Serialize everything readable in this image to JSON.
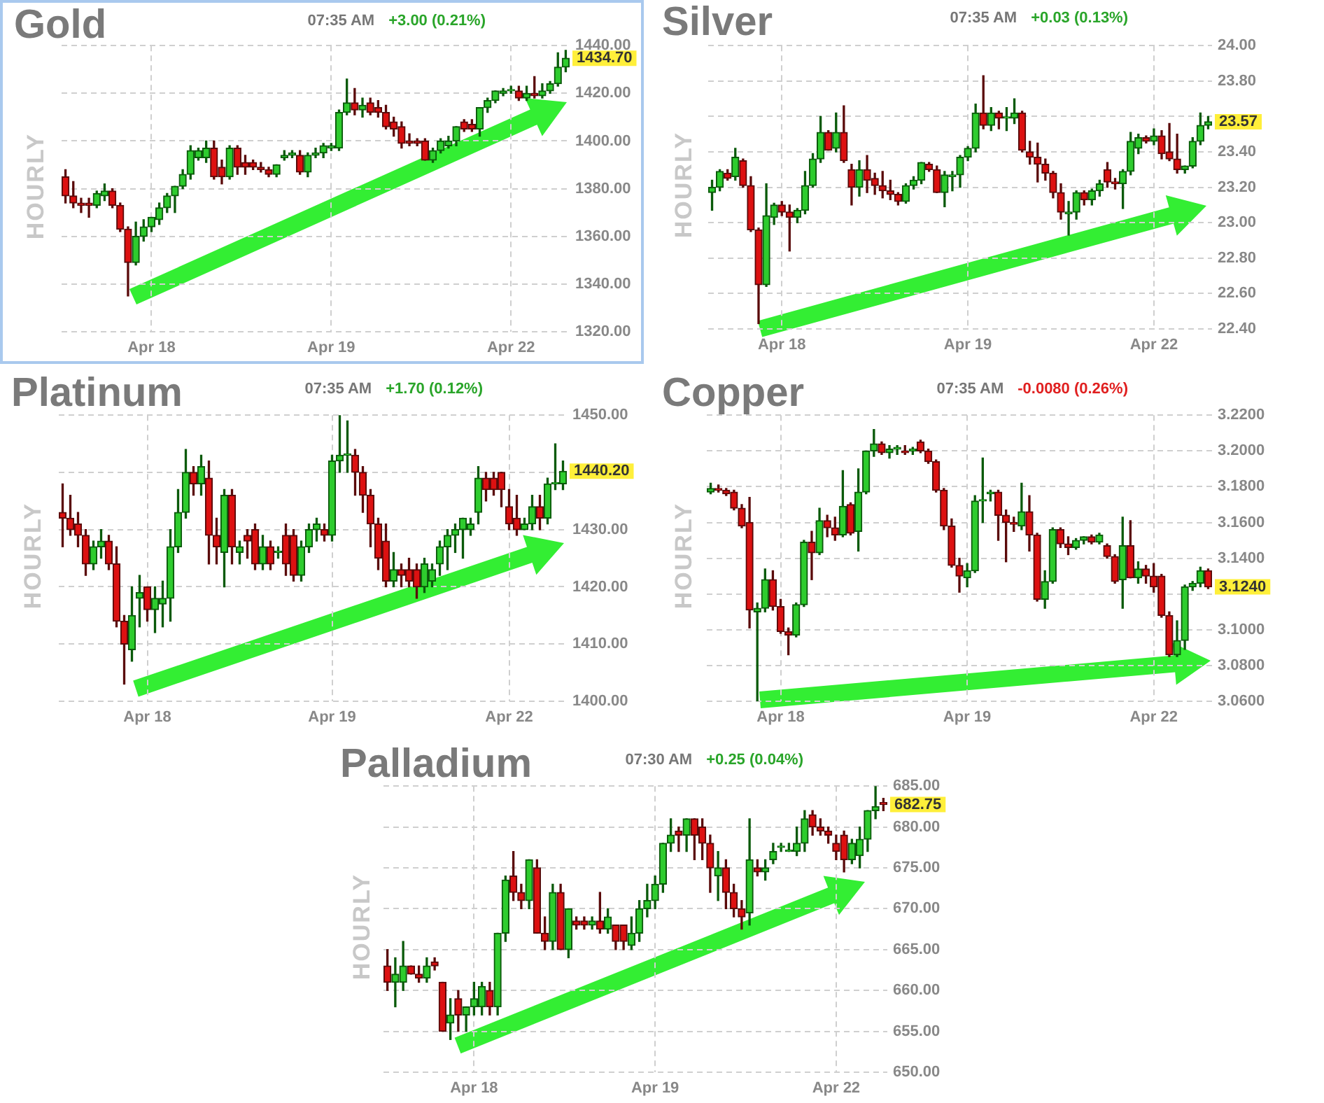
{
  "chart_data": [
    {
      "type": "candlestick",
      "title": "Gold",
      "ylabel": "HOURLY",
      "annotations": [
        "07:35 AM",
        "+3.00 (0.21%)",
        "1434.70"
      ],
      "categories": [
        null,
        null,
        null,
        null,
        null,
        null,
        null,
        null,
        null,
        null,
        null,
        "Apr 18",
        null,
        null,
        null,
        null,
        null,
        null,
        null,
        null,
        null,
        null,
        null,
        null,
        null,
        null,
        null,
        null,
        null,
        null,
        null,
        null,
        null,
        null,
        "Apr 19",
        null,
        null,
        null,
        null,
        null,
        null,
        null,
        null,
        null,
        null,
        null,
        null,
        null,
        null,
        null,
        null,
        null,
        null,
        null,
        null,
        null,
        null,
        "Apr 22",
        null,
        null,
        null,
        null,
        null,
        null,
        null
      ],
      "ohlc": [
        [
          1385,
          1388,
          1374,
          1377
        ],
        [
          1377,
          1383,
          1372,
          1374
        ],
        [
          1374,
          1376,
          1370,
          1373
        ],
        [
          1374,
          1376,
          1368,
          1373
        ],
        [
          1373,
          1379,
          1372,
          1378
        ],
        [
          1377,
          1382,
          1375,
          1379
        ],
        [
          1379,
          1380,
          1372,
          1373
        ],
        [
          1373,
          1374,
          1362,
          1363
        ],
        [
          1363,
          1364,
          1335,
          1349
        ],
        [
          1349,
          1366,
          1348,
          1360
        ],
        [
          1360,
          1367,
          1358,
          1364
        ],
        [
          1364,
          1368,
          1362,
          1368
        ],
        [
          1367,
          1374,
          1365,
          1372
        ],
        [
          1372,
          1378,
          1370,
          1377
        ],
        [
          1377,
          1381,
          1370,
          1381
        ],
        [
          1381,
          1388,
          1380,
          1386
        ],
        [
          1386,
          1398,
          1384,
          1396
        ],
        [
          1393,
          1397,
          1392,
          1396
        ],
        [
          1393,
          1400,
          1391,
          1397
        ],
        [
          1397,
          1400,
          1384,
          1385
        ],
        [
          1389,
          1392,
          1382,
          1385
        ],
        [
          1385,
          1398,
          1384,
          1397
        ],
        [
          1397,
          1398,
          1386,
          1389
        ],
        [
          1391,
          1394,
          1386,
          1389
        ],
        [
          1391,
          1392,
          1388,
          1389
        ],
        [
          1389,
          1391,
          1387,
          1388
        ],
        [
          1388,
          1389,
          1385,
          1386
        ],
        [
          1386,
          1390,
          1385,
          1390
        ],
        [
          1393,
          1396,
          1392,
          1394
        ],
        [
          1394,
          1396,
          1393,
          1395
        ],
        [
          1394,
          1396,
          1386,
          1387
        ],
        [
          1387,
          1395,
          1385,
          1394
        ],
        [
          1394,
          1397,
          1393,
          1395
        ],
        [
          1395,
          1399,
          1393,
          1398
        ],
        [
          1397,
          1399,
          1396,
          1398
        ],
        [
          1397,
          1413,
          1396,
          1412
        ],
        [
          1412,
          1426,
          1411,
          1416
        ],
        [
          1416,
          1422,
          1411,
          1413
        ],
        [
          1413,
          1418,
          1410,
          1415
        ],
        [
          1416,
          1418,
          1411,
          1412
        ],
        [
          1414,
          1417,
          1410,
          1412
        ],
        [
          1412,
          1415,
          1405,
          1406
        ],
        [
          1408,
          1410,
          1402,
          1405
        ],
        [
          1406,
          1408,
          1397,
          1399
        ],
        [
          1400,
          1403,
          1398,
          1399
        ],
        [
          1400,
          1401,
          1398,
          1399
        ],
        [
          1400,
          1401,
          1392,
          1392
        ],
        [
          1392,
          1397,
          1391,
          1396
        ],
        [
          1396,
          1401,
          1395,
          1400
        ],
        [
          1398,
          1402,
          1397,
          1400
        ],
        [
          1400,
          1406,
          1398,
          1406
        ],
        [
          1408,
          1409,
          1404,
          1405
        ],
        [
          1407,
          1409,
          1404,
          1405
        ],
        [
          1405,
          1414,
          1402,
          1414
        ],
        [
          1414,
          1418,
          1412,
          1417
        ],
        [
          1417,
          1421,
          1416,
          1421
        ],
        [
          1420,
          1422,
          1419,
          1421
        ],
        [
          1421,
          1423,
          1420,
          1421.5
        ],
        [
          1421,
          1423,
          1417,
          1418
        ],
        [
          1418,
          1423,
          1417,
          1420
        ],
        [
          1420,
          1427,
          1418,
          1419
        ],
        [
          1419,
          1424,
          1418,
          1421
        ],
        [
          1421,
          1425,
          1420,
          1424
        ],
        [
          1424,
          1437,
          1423,
          1431
        ],
        [
          1431,
          1438,
          1429,
          1434.7
        ]
      ],
      "ylim": [
        1320,
        1440
      ],
      "yticks": [
        {
          "value": 1440,
          "label": "1440.00"
        },
        {
          "value": 1420,
          "label": "1420.00"
        },
        {
          "value": 1400,
          "label": "1400.00"
        },
        {
          "value": 1380,
          "label": "1380.00"
        },
        {
          "value": 1360,
          "label": "1360.00"
        },
        {
          "value": 1340,
          "label": "1340.00"
        },
        {
          "value": 1320,
          "label": "1320.00"
        }
      ],
      "grid": true,
      "legend": false
    },
    {
      "type": "candlestick",
      "title": "Silver",
      "ylabel": "HOURLY",
      "annotations": [
        "07:35 AM",
        "+0.03 (0.13%)",
        "23.57"
      ],
      "categories": [
        null,
        null,
        null,
        null,
        null,
        null,
        null,
        null,
        null,
        "Apr 18",
        null,
        null,
        null,
        null,
        null,
        null,
        null,
        null,
        null,
        null,
        null,
        null,
        null,
        null,
        null,
        null,
        null,
        null,
        null,
        null,
        null,
        null,
        null,
        "Apr 19",
        null,
        null,
        null,
        null,
        null,
        null,
        null,
        null,
        null,
        null,
        null,
        null,
        null,
        null,
        null,
        null,
        null,
        null,
        null,
        null,
        null,
        null,
        null,
        "Apr 22",
        null,
        null,
        null,
        null,
        null,
        null,
        null
      ],
      "ohlc": [
        [
          23.17,
          23.24,
          23.07,
          23.2
        ],
        [
          23.2,
          23.3,
          23.18,
          23.29
        ],
        [
          23.28,
          23.3,
          23.24,
          23.25
        ],
        [
          23.26,
          23.42,
          23.24,
          23.37
        ],
        [
          23.35,
          23.36,
          23.2,
          23.21
        ],
        [
          23.21,
          23.26,
          22.95,
          22.96
        ],
        [
          22.96,
          22.97,
          22.43,
          22.65
        ],
        [
          22.65,
          23.22,
          22.64,
          23.04
        ],
        [
          23.03,
          23.11,
          22.99,
          23.1
        ],
        [
          23.1,
          23.12,
          23.04,
          23.06
        ],
        [
          23.06,
          23.1,
          22.84,
          23.03
        ],
        [
          23.03,
          23.08,
          23,
          23.07
        ],
        [
          23.07,
          23.29,
          23.05,
          23.21
        ],
        [
          23.21,
          23.39,
          23.2,
          23.36
        ],
        [
          23.36,
          23.6,
          23.34,
          23.51
        ],
        [
          23.51,
          23.52,
          23.41,
          23.41
        ],
        [
          23.42,
          23.62,
          23.4,
          23.51
        ],
        [
          23.51,
          23.66,
          23.34,
          23.35
        ],
        [
          23.3,
          23.33,
          23.1,
          23.2
        ],
        [
          23.2,
          23.35,
          23.15,
          23.3
        ],
        [
          23.3,
          23.38,
          23.17,
          23.24
        ],
        [
          23.25,
          23.28,
          23.16,
          23.21
        ],
        [
          23.21,
          23.29,
          23.14,
          23.18
        ],
        [
          23.18,
          23.24,
          23.13,
          23.16
        ],
        [
          23.16,
          23.17,
          23.1,
          23.12
        ],
        [
          23.12,
          23.22,
          23.11,
          23.21
        ],
        [
          23.21,
          23.26,
          23.19,
          23.24
        ],
        [
          23.24,
          23.34,
          23.22,
          23.34
        ],
        [
          23.33,
          23.34,
          23.29,
          23.3
        ],
        [
          23.3,
          23.32,
          23.17,
          23.17
        ],
        [
          23.17,
          23.29,
          23.09,
          23.27
        ],
        [
          23.26,
          23.29,
          23.18,
          23.27
        ],
        [
          23.27,
          23.38,
          23.2,
          23.37
        ],
        [
          23.37,
          23.43,
          23.35,
          23.42
        ],
        [
          23.42,
          23.67,
          23.4,
          23.62
        ],
        [
          23.62,
          23.83,
          23.53,
          23.55
        ],
        [
          23.55,
          23.65,
          23.52,
          23.62
        ],
        [
          23.62,
          23.63,
          23.53,
          23.59
        ],
        [
          23.59,
          23.65,
          23.52,
          23.59
        ],
        [
          23.59,
          23.7,
          23.56,
          23.62
        ],
        [
          23.62,
          23.63,
          23.4,
          23.41
        ],
        [
          23.4,
          23.46,
          23.33,
          23.37
        ],
        [
          23.37,
          23.45,
          23.23,
          23.33
        ],
        [
          23.33,
          23.36,
          23.24,
          23.28
        ],
        [
          23.28,
          23.29,
          23.14,
          23.17
        ],
        [
          23.17,
          23.22,
          23.02,
          23.06
        ],
        [
          23.05,
          23.12,
          22.93,
          23.06
        ],
        [
          23.06,
          23.18,
          23.02,
          23.17
        ],
        [
          23.17,
          23.18,
          23.1,
          23.13
        ],
        [
          23.13,
          23.19,
          23.1,
          23.18
        ],
        [
          23.18,
          23.24,
          23.15,
          23.22
        ],
        [
          23.3,
          23.34,
          23.2,
          23.23
        ],
        [
          23.23,
          23.25,
          23.19,
          23.22
        ],
        [
          23.22,
          23.3,
          23.08,
          23.29
        ],
        [
          23.29,
          23.51,
          23.27,
          23.46
        ],
        [
          23.42,
          23.5,
          23.39,
          23.48
        ],
        [
          23.48,
          23.49,
          23.45,
          23.46
        ],
        [
          23.46,
          23.53,
          23.44,
          23.49
        ],
        [
          23.49,
          23.52,
          23.36,
          23.39
        ],
        [
          23.4,
          23.56,
          23.35,
          23.36
        ],
        [
          23.36,
          23.5,
          23.28,
          23.3
        ],
        [
          23.3,
          23.32,
          23.28,
          23.32
        ],
        [
          23.32,
          23.48,
          23.31,
          23.46
        ],
        [
          23.46,
          23.62,
          23.44,
          23.55
        ],
        [
          23.55,
          23.6,
          23.53,
          23.57
        ]
      ],
      "ylim": [
        22.4,
        24
      ],
      "yticks": [
        {
          "value": 24,
          "label": "24.00"
        },
        {
          "value": 23.8,
          "label": "23.80"
        },
        {
          "value": 23.6,
          "label": null
        },
        {
          "value": 23.4,
          "label": "23.40"
        },
        {
          "value": 23.2,
          "label": "23.20"
        },
        {
          "value": 23,
          "label": "23.00"
        },
        {
          "value": 22.8,
          "label": "22.80"
        },
        {
          "value": 22.6,
          "label": "22.60"
        },
        {
          "value": 22.4,
          "label": "22.40"
        }
      ],
      "grid": true,
      "legend": false
    },
    {
      "type": "candlestick",
      "title": "Platinum",
      "ylabel": "HOURLY",
      "annotations": [
        "07:35 AM",
        "+1.70 (0.12%)",
        "1440.20"
      ],
      "categories": [
        null,
        null,
        null,
        null,
        null,
        null,
        null,
        null,
        null,
        null,
        null,
        "Apr 18",
        null,
        null,
        null,
        null,
        null,
        null,
        null,
        null,
        null,
        null,
        null,
        null,
        null,
        null,
        null,
        null,
        null,
        null,
        null,
        null,
        null,
        null,
        null,
        "Apr 19",
        null,
        null,
        null,
        null,
        null,
        null,
        null,
        null,
        null,
        null,
        null,
        null,
        null,
        null,
        null,
        null,
        null,
        null,
        null,
        null,
        null,
        null,
        "Apr 22",
        null,
        null,
        null,
        null,
        null,
        null,
        null
      ],
      "ohlc": [
        [
          1433,
          1438,
          1427,
          1432
        ],
        [
          1432,
          1436,
          1429,
          1430
        ],
        [
          1431,
          1433,
          1427,
          1429
        ],
        [
          1429,
          1430,
          1422,
          1424
        ],
        [
          1424,
          1428,
          1423,
          1427
        ],
        [
          1427,
          1430,
          1425,
          1428
        ],
        [
          1428,
          1429,
          1423,
          1424
        ],
        [
          1424,
          1427,
          1413,
          1414
        ],
        [
          1414,
          1415,
          1403,
          1410
        ],
        [
          1409,
          1420,
          1407,
          1415
        ],
        [
          1418,
          1422,
          1413,
          1419
        ],
        [
          1420,
          1420,
          1414,
          1416
        ],
        [
          1416,
          1420,
          1412,
          1418
        ],
        [
          1417,
          1421,
          1413,
          1418
        ],
        [
          1418,
          1430,
          1414,
          1427
        ],
        [
          1427,
          1437,
          1426,
          1433
        ],
        [
          1433,
          1444,
          1432,
          1440
        ],
        [
          1440,
          1441,
          1436,
          1438
        ],
        [
          1438,
          1443,
          1436,
          1441
        ],
        [
          1439,
          1442,
          1424,
          1429
        ],
        [
          1429,
          1432,
          1424,
          1427
        ],
        [
          1426,
          1437,
          1420,
          1436
        ],
        [
          1436,
          1437,
          1424,
          1427
        ],
        [
          1426,
          1428,
          1424,
          1427
        ],
        [
          1429,
          1430,
          1425,
          1428
        ],
        [
          1430,
          1431,
          1423,
          1424
        ],
        [
          1424,
          1429,
          1423,
          1427
        ],
        [
          1427,
          1428,
          1423,
          1424
        ],
        [
          1426,
          1427,
          1425,
          1426
        ],
        [
          1429,
          1431,
          1422,
          1424
        ],
        [
          1429,
          1430,
          1421,
          1422
        ],
        [
          1422,
          1428,
          1421,
          1427
        ],
        [
          1427,
          1431,
          1426,
          1430
        ],
        [
          1430,
          1432,
          1428,
          1431
        ],
        [
          1430,
          1431,
          1428,
          1429
        ],
        [
          1429,
          1443,
          1428,
          1442
        ],
        [
          1442,
          1450,
          1440,
          1443
        ],
        [
          1443,
          1449,
          1440,
          1443
        ],
        [
          1443,
          1444,
          1436,
          1440
        ],
        [
          1440,
          1441,
          1433,
          1436
        ],
        [
          1436,
          1437,
          1427,
          1431
        ],
        [
          1431,
          1432,
          1423,
          1425
        ],
        [
          1428,
          1431,
          1420,
          1421
        ],
        [
          1421,
          1426,
          1420,
          1423
        ],
        [
          1423,
          1424,
          1420,
          1422
        ],
        [
          1423,
          1425,
          1420,
          1421
        ],
        [
          1423,
          1424,
          1418,
          1420
        ],
        [
          1420,
          1425,
          1419,
          1424
        ],
        [
          1421,
          1424,
          1420,
          1423
        ],
        [
          1424,
          1428,
          1422,
          1427
        ],
        [
          1427,
          1430,
          1423,
          1429
        ],
        [
          1429,
          1431,
          1426,
          1430
        ],
        [
          1430,
          1432,
          1425,
          1432
        ],
        [
          1430,
          1432,
          1429,
          1431
        ],
        [
          1433,
          1441,
          1431,
          1439
        ],
        [
          1439,
          1440,
          1435,
          1437
        ],
        [
          1439,
          1440,
          1436,
          1437
        ],
        [
          1440,
          1440,
          1434,
          1437
        ],
        [
          1434,
          1437,
          1430,
          1431
        ],
        [
          1432,
          1436,
          1429,
          1430
        ],
        [
          1430,
          1432,
          1430,
          1431
        ],
        [
          1431,
          1436,
          1430,
          1434
        ],
        [
          1434,
          1436,
          1430,
          1432
        ],
        [
          1432,
          1439,
          1431,
          1438
        ],
        [
          1438,
          1445,
          1437,
          1438
        ],
        [
          1438,
          1442,
          1437,
          1440.2
        ]
      ],
      "ylim": [
        1400,
        1450
      ],
      "yticks": [
        {
          "value": 1450,
          "label": "1450.00"
        },
        {
          "value": 1440,
          "label": null
        },
        {
          "value": 1430,
          "label": "1430.00"
        },
        {
          "value": 1420,
          "label": "1420.00"
        },
        {
          "value": 1410,
          "label": "1410.00"
        },
        {
          "value": 1400,
          "label": "1400.00"
        }
      ],
      "grid": true,
      "legend": false
    },
    {
      "type": "candlestick",
      "title": "Copper",
      "ylabel": "HOURLY",
      "annotations": [
        "07:35 AM",
        "-0.0080 (0.26%)",
        "3.1240"
      ],
      "categories": [
        null,
        null,
        null,
        null,
        null,
        null,
        null,
        null,
        null,
        "Apr 18",
        null,
        null,
        null,
        null,
        null,
        null,
        null,
        null,
        null,
        null,
        null,
        null,
        null,
        null,
        null,
        null,
        null,
        null,
        null,
        null,
        null,
        null,
        null,
        "Apr 19",
        null,
        null,
        null,
        null,
        null,
        null,
        null,
        null,
        null,
        null,
        null,
        null,
        null,
        null,
        null,
        null,
        null,
        null,
        null,
        null,
        null,
        null,
        null,
        "Apr 22",
        null,
        null,
        null,
        null,
        null,
        null,
        null
      ],
      "ohlc": [
        [
          3.177,
          3.182,
          3.176,
          3.179
        ],
        [
          3.179,
          3.181,
          3.177,
          3.178
        ],
        [
          3.178,
          3.179,
          3.175,
          3.176
        ],
        [
          3.177,
          3.178,
          3.167,
          3.168
        ],
        [
          3.168,
          3.17,
          3.157,
          3.158
        ],
        [
          3.16,
          3.174,
          3.101,
          3.111
        ],
        [
          3.11,
          3.115,
          3.06,
          3.112
        ],
        [
          3.112,
          3.134,
          3.11,
          3.128
        ],
        [
          3.128,
          3.133,
          3.111,
          3.113
        ],
        [
          3.113,
          3.117,
          3.098,
          3.099
        ],
        [
          3.099,
          3.101,
          3.086,
          3.097
        ],
        [
          3.097,
          3.115,
          3.096,
          3.114
        ],
        [
          3.114,
          3.15,
          3.113,
          3.149
        ],
        [
          3.149,
          3.155,
          3.128,
          3.143
        ],
        [
          3.143,
          3.168,
          3.142,
          3.161
        ],
        [
          3.161,
          3.164,
          3.152,
          3.157
        ],
        [
          3.157,
          3.163,
          3.15,
          3.153
        ],
        [
          3.153,
          3.189,
          3.152,
          3.169
        ],
        [
          3.17,
          3.171,
          3.153,
          3.154
        ],
        [
          3.155,
          3.19,
          3.144,
          3.177
        ],
        [
          3.177,
          3.2,
          3.176,
          3.2
        ],
        [
          3.2,
          3.212,
          3.197,
          3.204
        ],
        [
          3.204,
          3.205,
          3.198,
          3.199
        ],
        [
          3.199,
          3.203,
          3.196,
          3.201
        ],
        [
          3.201,
          3.203,
          3.198,
          3.202
        ],
        [
          3.2,
          3.203,
          3.198,
          3.199
        ],
        [
          3.2,
          3.202,
          3.198,
          3.201
        ],
        [
          3.205,
          3.206,
          3.199,
          3.2
        ],
        [
          3.2,
          3.201,
          3.193,
          3.194
        ],
        [
          3.194,
          3.195,
          3.177,
          3.178
        ],
        [
          3.178,
          3.179,
          3.156,
          3.158
        ],
        [
          3.158,
          3.162,
          3.135,
          3.136
        ],
        [
          3.136,
          3.14,
          3.121,
          3.13
        ],
        [
          3.129,
          3.137,
          3.124,
          3.133
        ],
        [
          3.133,
          3.175,
          3.132,
          3.172
        ],
        [
          3.172,
          3.196,
          3.16,
          3.172
        ],
        [
          3.176,
          3.178,
          3.172,
          3.177
        ],
        [
          3.177,
          3.178,
          3.15,
          3.164
        ],
        [
          3.164,
          3.167,
          3.138,
          3.16
        ],
        [
          3.16,
          3.163,
          3.155,
          3.159
        ],
        [
          3.158,
          3.182,
          3.156,
          3.166
        ],
        [
          3.166,
          3.175,
          3.144,
          3.153
        ],
        [
          3.153,
          3.154,
          3.116,
          3.117
        ],
        [
          3.117,
          3.133,
          3.112,
          3.127
        ],
        [
          3.127,
          3.157,
          3.126,
          3.156
        ],
        [
          3.156,
          3.157,
          3.146,
          3.148
        ],
        [
          3.148,
          3.152,
          3.142,
          3.146
        ],
        [
          3.146,
          3.151,
          3.145,
          3.15
        ],
        [
          3.15,
          3.152,
          3.148,
          3.152
        ],
        [
          3.152,
          3.153,
          3.148,
          3.149
        ],
        [
          3.149,
          3.154,
          3.148,
          3.153
        ],
        [
          3.147,
          3.148,
          3.14,
          3.141
        ],
        [
          3.141,
          3.142,
          3.126,
          3.127
        ],
        [
          3.128,
          3.163,
          3.112,
          3.147
        ],
        [
          3.147,
          3.161,
          3.129,
          3.129
        ],
        [
          3.129,
          3.138,
          3.126,
          3.134
        ],
        [
          3.134,
          3.136,
          3.126,
          3.13
        ],
        [
          3.13,
          3.137,
          3.121,
          3.124
        ],
        [
          3.13,
          3.131,
          3.107,
          3.108
        ],
        [
          3.108,
          3.11,
          3.085,
          3.086
        ],
        [
          3.086,
          3.105,
          3.085,
          3.094
        ],
        [
          3.094,
          3.125,
          3.089,
          3.124
        ],
        [
          3.124,
          3.127,
          3.122,
          3.126
        ],
        [
          3.126,
          3.135,
          3.124,
          3.133
        ],
        [
          3.133,
          3.134,
          3.123,
          3.124
        ]
      ],
      "ylim": [
        3.06,
        3.22
      ],
      "yticks": [
        {
          "value": 3.22,
          "label": "3.2200"
        },
        {
          "value": 3.2,
          "label": "3.2000"
        },
        {
          "value": 3.18,
          "label": "3.1800"
        },
        {
          "value": 3.16,
          "label": "3.1600"
        },
        {
          "value": 3.14,
          "label": "3.1400"
        },
        {
          "value": 3.12,
          "label": null
        },
        {
          "value": 3.1,
          "label": "3.1000"
        },
        {
          "value": 3.08,
          "label": "3.0800"
        },
        {
          "value": 3.06,
          "label": "3.0600"
        }
      ],
      "grid": true,
      "legend": false
    },
    {
      "type": "candlestick",
      "title": "Palladium",
      "ylabel": "HOURLY",
      "annotations": [
        "07:30 AM",
        "+0.25 (0.04%)",
        "682.75"
      ],
      "categories": [
        null,
        null,
        null,
        null,
        null,
        null,
        null,
        null,
        null,
        null,
        null,
        "Apr 18",
        null,
        null,
        null,
        null,
        null,
        null,
        null,
        null,
        null,
        null,
        null,
        null,
        null,
        null,
        null,
        null,
        null,
        null,
        null,
        null,
        null,
        null,
        "Apr 19",
        null,
        null,
        null,
        null,
        null,
        null,
        null,
        null,
        null,
        null,
        null,
        null,
        null,
        null,
        null,
        null,
        null,
        null,
        null,
        null,
        null,
        null,
        "Apr 22",
        null,
        null,
        null,
        null,
        null,
        null
      ],
      "ohlc": [
        [
          663,
          665,
          660,
          661
        ],
        [
          661,
          664,
          658,
          662
        ],
        [
          661,
          666,
          660,
          663
        ],
        [
          663,
          663,
          662,
          662
        ],
        [
          662,
          663,
          661,
          661.5
        ],
        [
          661.5,
          664,
          661,
          663
        ],
        [
          663.5,
          664,
          662.5,
          663
        ],
        [
          661,
          661,
          655,
          655
        ],
        [
          656,
          659,
          654,
          657
        ],
        [
          659,
          660,
          655,
          657
        ],
        [
          657,
          658,
          655,
          658
        ],
        [
          658,
          661,
          657,
          659
        ],
        [
          658,
          661,
          657,
          660.5
        ],
        [
          660,
          661,
          657,
          658
        ],
        [
          658,
          667,
          657,
          667
        ],
        [
          667,
          674,
          666,
          673.5
        ],
        [
          674,
          677,
          671,
          672
        ],
        [
          672,
          673,
          670,
          671
        ],
        [
          671,
          676,
          670,
          676
        ],
        [
          675,
          676,
          667,
          667
        ],
        [
          667,
          669,
          665,
          666
        ],
        [
          666,
          673,
          665,
          672
        ],
        [
          672,
          673,
          665,
          665
        ],
        [
          665,
          670,
          664,
          670
        ],
        [
          668.5,
          669,
          667.5,
          668
        ],
        [
          668.5,
          669,
          667.5,
          668
        ],
        [
          668,
          669,
          667.5,
          668.5
        ],
        [
          668.5,
          672,
          667,
          667.5
        ],
        [
          667.5,
          670,
          667,
          669
        ],
        [
          668,
          668,
          665,
          666
        ],
        [
          668,
          668,
          665,
          666
        ],
        [
          665.5,
          669,
          665,
          667
        ],
        [
          667,
          671,
          666,
          670
        ],
        [
          670,
          673,
          669,
          671
        ],
        [
          671,
          674,
          670,
          673
        ],
        [
          673,
          678,
          672,
          678
        ],
        [
          678,
          681,
          677,
          679
        ],
        [
          679.5,
          680,
          677,
          679
        ],
        [
          679,
          681,
          677,
          681
        ],
        [
          681,
          681,
          676,
          679
        ],
        [
          680,
          681,
          676,
          678
        ],
        [
          678,
          679,
          672,
          675
        ],
        [
          674,
          677,
          671,
          675
        ],
        [
          675,
          676,
          670,
          672
        ],
        [
          672,
          673,
          669,
          670
        ],
        [
          670,
          671,
          667.5,
          669
        ],
        [
          669.5,
          681,
          668,
          676
        ],
        [
          675,
          676,
          674,
          674.5
        ],
        [
          674.5,
          676,
          673.5,
          675
        ],
        [
          676,
          678,
          675.5,
          677
        ],
        [
          677.5,
          678,
          677,
          677.5
        ],
        [
          677,
          678,
          677,
          677
        ],
        [
          677,
          680,
          676.5,
          678
        ],
        [
          678,
          682,
          677,
          681
        ],
        [
          681.5,
          682,
          679,
          680
        ],
        [
          680,
          681,
          679,
          679.5
        ],
        [
          679.5,
          680,
          678,
          679
        ],
        [
          678,
          679,
          676,
          677
        ],
        [
          679,
          679.5,
          674.5,
          676
        ],
        [
          676,
          678.5,
          675.5,
          678
        ],
        [
          676.5,
          680,
          675,
          678.5
        ],
        [
          678.5,
          682,
          677,
          682
        ],
        [
          682,
          685,
          681,
          682.5
        ],
        [
          683,
          683.5,
          682,
          682.75
        ]
      ],
      "ylim": [
        650,
        685
      ],
      "yticks": [
        {
          "value": 685,
          "label": "685.00"
        },
        {
          "value": 680,
          "label": "680.00"
        },
        {
          "value": 675,
          "label": "675.00"
        },
        {
          "value": 670,
          "label": "670.00"
        },
        {
          "value": 665,
          "label": "665.00"
        },
        {
          "value": 660,
          "label": "660.00"
        },
        {
          "value": 655,
          "label": "655.00"
        },
        {
          "value": 650,
          "label": "650.00"
        }
      ],
      "grid": true,
      "legend": false
    }
  ]
}
